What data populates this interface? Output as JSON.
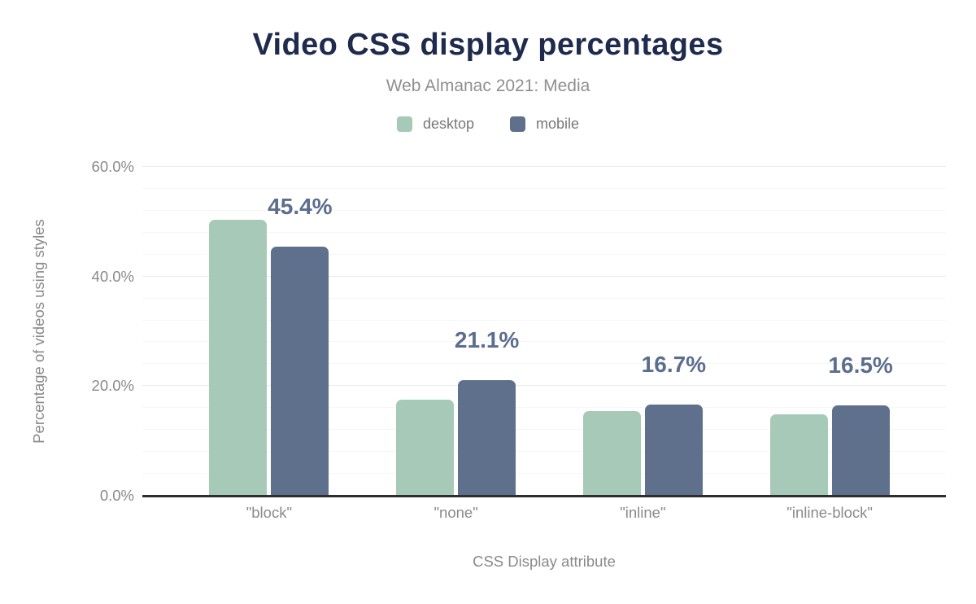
{
  "chart_data": {
    "type": "bar",
    "title": "Video CSS display percentages",
    "subtitle": "Web Almanac 2021: Media",
    "xlabel": "CSS Display attribute",
    "ylabel": "Percentage of videos using styles",
    "categories": [
      "\"block\"",
      "\"none\"",
      "\"inline\"",
      "\"inline-block\""
    ],
    "series": [
      {
        "name": "desktop",
        "color": "#a7c9b8",
        "values": [
          50.4,
          17.6,
          15.4,
          14.9
        ]
      },
      {
        "name": "mobile",
        "color": "#5f708c",
        "values": [
          45.4,
          21.1,
          16.7,
          16.5
        ]
      }
    ],
    "data_labels": {
      "on_series": "mobile",
      "labels": [
        "45.4%",
        "21.1%",
        "16.7%",
        "16.5%"
      ],
      "color": "#5c6e8e"
    },
    "yticks": [
      {
        "value": 0,
        "label": "0.0%"
      },
      {
        "value": 20,
        "label": "20.0%"
      },
      {
        "value": 40,
        "label": "40.0%"
      },
      {
        "value": 60,
        "label": "60.0%"
      }
    ],
    "ylim": [
      0,
      60
    ],
    "grid": {
      "major_step": 20,
      "minor_step": 4,
      "major_color": "#ebebeb",
      "minor_color": "#f6f6f6"
    },
    "legend_position": "top",
    "colors": {
      "title": "#1f2b4d",
      "subtitle": "#8f8f8f",
      "axis_text": "#8a8a8a",
      "axis_line": "#2e2e2e"
    }
  }
}
